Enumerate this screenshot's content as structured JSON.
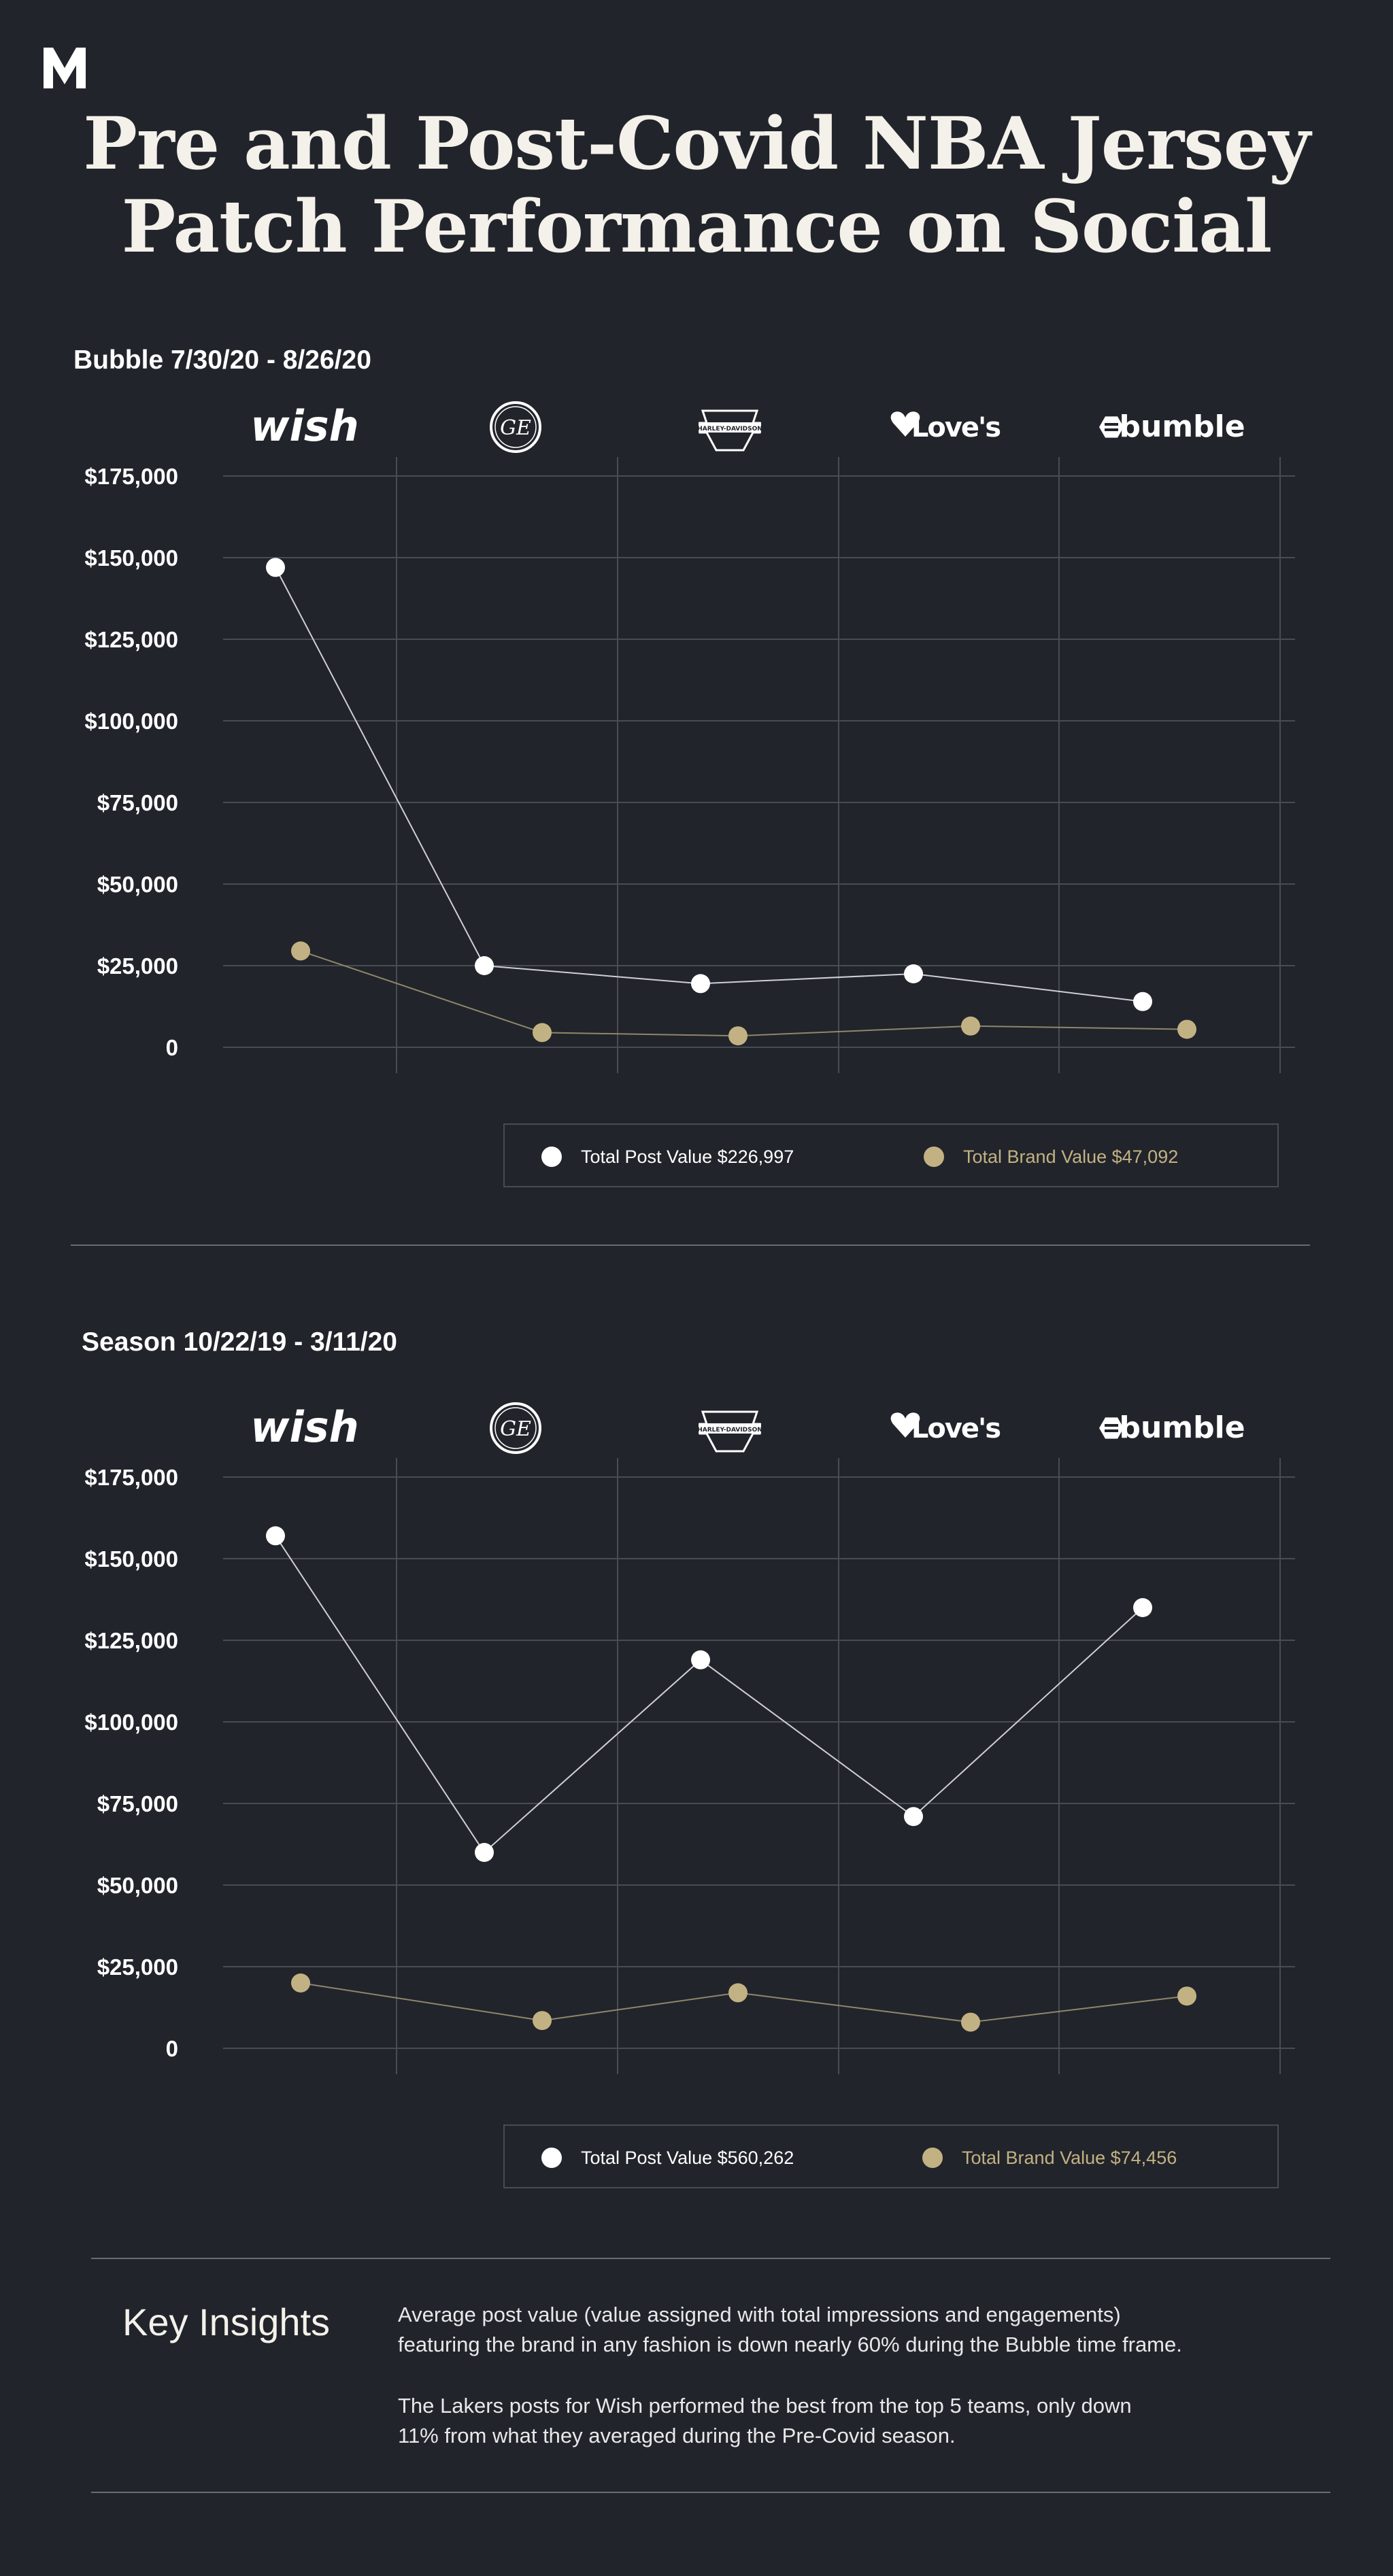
{
  "header": {
    "brand_mark": "M",
    "title_line1": "Pre and Post-Covid NBA Jersey",
    "title_line2": "Patch Performance on Social"
  },
  "colors": {
    "background": "#22242b",
    "post": "#ffffff",
    "brand": "#c2b283",
    "grid": "#4a4c54"
  },
  "brands": [
    "wish",
    "GE",
    "HARLEY-DAVIDSON",
    "Love's",
    "bumble"
  ],
  "y_ticks": [
    "$175,000",
    "$150,000",
    "$125,000",
    "$100,000",
    "$75,000",
    "$50,000",
    "$25,000",
    "0"
  ],
  "chart_data": [
    {
      "type": "line",
      "title": "Bubble 7/30/20 - 8/26/20",
      "categories": [
        "wish",
        "GE",
        "HARLEY-DAVIDSON",
        "Love's",
        "bumble"
      ],
      "ylim": [
        0,
        175000
      ],
      "grid": true,
      "legend_position": "bottom",
      "series": [
        {
          "name": "Total Post Value $226,997",
          "values": [
            147000,
            25000,
            19500,
            22500,
            14000
          ]
        },
        {
          "name": "Total Brand Value $47,092",
          "values": [
            29500,
            4500,
            3500,
            6500,
            5500
          ]
        }
      ]
    },
    {
      "type": "line",
      "title": "Season 10/22/19 - 3/11/20",
      "categories": [
        "wish",
        "GE",
        "HARLEY-DAVIDSON",
        "Love's",
        "bumble"
      ],
      "ylim": [
        0,
        175000
      ],
      "grid": true,
      "legend_position": "bottom",
      "series": [
        {
          "name": "Total Post Value $560,262",
          "values": [
            157000,
            60000,
            119000,
            71000,
            135000
          ]
        },
        {
          "name": "Total Brand Value $74,456",
          "values": [
            20000,
            8500,
            17000,
            8000,
            16000
          ]
        }
      ]
    }
  ],
  "insights": {
    "title": "Key Insights",
    "p1_line1": "Average post value (value assigned with total impressions and engagements)",
    "p1_line2": "featuring the brand in any fashion is down nearly 60% during the Bubble time frame.",
    "p2_line1": "The Lakers posts for Wish performed the best from the top 5 teams, only down",
    "p2_line2": "11% from what they averaged during the Pre-Covid season."
  }
}
